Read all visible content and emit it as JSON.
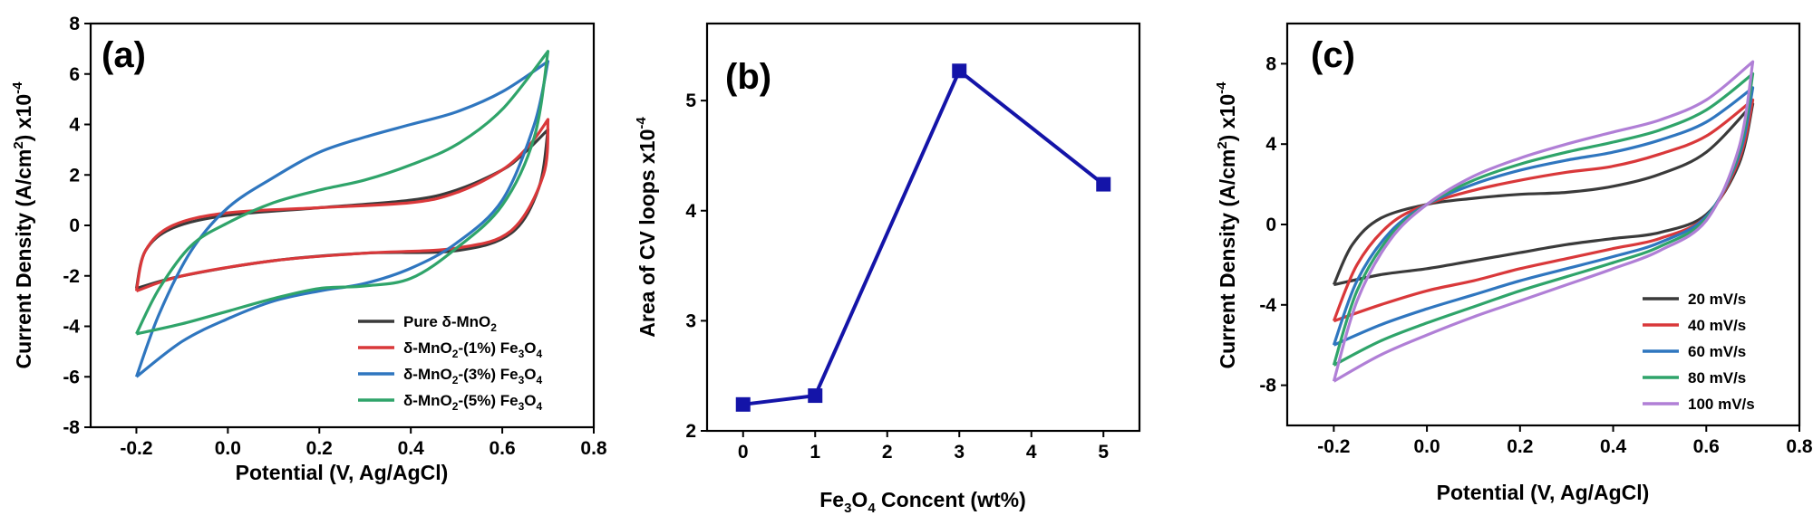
{
  "colors": {
    "black": "#3a3a3a",
    "red": "#d9383a",
    "blue": "#2f76bf",
    "green": "#2fa46a",
    "purple": "#b07fd6",
    "navy": "#1414a8"
  },
  "chart_data": [
    {
      "type": "line",
      "panel_label": "(a)",
      "xlabel": "Potential (V, Ag/AgCl)",
      "ylabel_main": "Current Density (A/cm",
      "ylabel_sup": "2",
      "ylabel_after": ") x10",
      "ylabel_exp": "-4",
      "xlim": [
        -0.3,
        0.8
      ],
      "ylim": [
        -8,
        8
      ],
      "xticks": [
        "-0.2",
        "0.0",
        "0.2",
        "0.4",
        "0.6",
        "0.8"
      ],
      "yticks": [
        "-8",
        "-6",
        "-4",
        "-2",
        "0",
        "2",
        "4",
        "6",
        "8"
      ],
      "legend_position": "bottom-right",
      "series": [
        {
          "name": "Pure δ-MnO2",
          "legend_text": "Pure δ-MnO",
          "legend_sub": "2",
          "legend_after": "",
          "legend_sub2": "",
          "color": "black",
          "upper": [
            [
              -0.2,
              -2.5
            ],
            [
              -0.18,
              -1.0
            ],
            [
              -0.12,
              -0.1
            ],
            [
              0.0,
              0.4
            ],
            [
              0.2,
              0.7
            ],
            [
              0.4,
              1.0
            ],
            [
              0.5,
              1.4
            ],
            [
              0.6,
              2.2
            ],
            [
              0.65,
              2.9
            ],
            [
              0.7,
              3.8
            ]
          ],
          "lower": [
            [
              0.7,
              3.8
            ],
            [
              0.68,
              1.5
            ],
            [
              0.62,
              -0.3
            ],
            [
              0.5,
              -1.0
            ],
            [
              0.3,
              -1.1
            ],
            [
              0.1,
              -1.4
            ],
            [
              -0.1,
              -2.0
            ],
            [
              -0.2,
              -2.5
            ]
          ]
        },
        {
          "name": "δ-MnO2-(1%) Fe3O4",
          "legend_text": "δ-MnO",
          "legend_sub": "2",
          "legend_after": "-(1%) Fe",
          "legend_sub2": "3",
          "legend_tail": "O",
          "legend_sub3": "4",
          "color": "red",
          "upper": [
            [
              -0.2,
              -2.6
            ],
            [
              -0.18,
              -1.0
            ],
            [
              -0.12,
              0.0
            ],
            [
              0.0,
              0.5
            ],
            [
              0.2,
              0.7
            ],
            [
              0.4,
              0.9
            ],
            [
              0.5,
              1.3
            ],
            [
              0.6,
              2.2
            ],
            [
              0.66,
              3.2
            ],
            [
              0.7,
              4.2
            ]
          ],
          "lower": [
            [
              0.7,
              4.2
            ],
            [
              0.69,
              2.0
            ],
            [
              0.62,
              -0.2
            ],
            [
              0.5,
              -0.9
            ],
            [
              0.3,
              -1.1
            ],
            [
              0.1,
              -1.4
            ],
            [
              -0.1,
              -2.0
            ],
            [
              -0.2,
              -2.6
            ]
          ]
        },
        {
          "name": "δ-MnO2-(3%) Fe3O4",
          "legend_text": "δ-MnO",
          "legend_sub": "2",
          "legend_after": "-(3%) Fe",
          "legend_sub2": "3",
          "legend_tail": "O",
          "legend_sub3": "4",
          "color": "blue",
          "upper": [
            [
              -0.2,
              -6.0
            ],
            [
              -0.15,
              -3.5
            ],
            [
              -0.08,
              -1.0
            ],
            [
              0.0,
              0.7
            ],
            [
              0.1,
              1.9
            ],
            [
              0.2,
              2.9
            ],
            [
              0.3,
              3.5
            ],
            [
              0.4,
              4.0
            ],
            [
              0.5,
              4.5
            ],
            [
              0.6,
              5.3
            ],
            [
              0.7,
              6.5
            ]
          ],
          "lower": [
            [
              0.7,
              6.5
            ],
            [
              0.67,
              4.0
            ],
            [
              0.6,
              1.0
            ],
            [
              0.5,
              -0.7
            ],
            [
              0.4,
              -1.7
            ],
            [
              0.3,
              -2.3
            ],
            [
              0.2,
              -2.6
            ],
            [
              0.1,
              -3.0
            ],
            [
              0.0,
              -3.7
            ],
            [
              -0.1,
              -4.6
            ],
            [
              -0.2,
              -6.0
            ]
          ]
        },
        {
          "name": "δ-MnO2-(5%) Fe3O4",
          "legend_text": "δ-MnO",
          "legend_sub": "2",
          "legend_after": "-(5%) Fe",
          "legend_sub2": "3",
          "legend_tail": "O",
          "legend_sub3": "4",
          "color": "green",
          "upper": [
            [
              -0.2,
              -4.3
            ],
            [
              -0.15,
              -2.5
            ],
            [
              -0.08,
              -0.8
            ],
            [
              0.0,
              0.1
            ],
            [
              0.1,
              0.9
            ],
            [
              0.2,
              1.4
            ],
            [
              0.3,
              1.8
            ],
            [
              0.4,
              2.4
            ],
            [
              0.5,
              3.2
            ],
            [
              0.6,
              4.6
            ],
            [
              0.7,
              6.9
            ]
          ],
          "lower": [
            [
              0.7,
              6.9
            ],
            [
              0.67,
              3.5
            ],
            [
              0.6,
              0.8
            ],
            [
              0.5,
              -0.9
            ],
            [
              0.4,
              -2.1
            ],
            [
              0.3,
              -2.4
            ],
            [
              0.2,
              -2.5
            ],
            [
              0.1,
              -2.9
            ],
            [
              0.0,
              -3.4
            ],
            [
              -0.1,
              -3.9
            ],
            [
              -0.2,
              -4.3
            ]
          ]
        }
      ]
    },
    {
      "type": "line",
      "panel_label": "(b)",
      "xlabel_pre": "Fe",
      "xlabel_sub1": "3",
      "xlabel_mid": "O",
      "xlabel_sub2": "4",
      "xlabel_post": " Concent (wt%)",
      "ylabel_main": "Area of CV loops x10",
      "ylabel_exp": "-4",
      "xlim": [
        -0.5,
        5.5
      ],
      "ylim": [
        2,
        5.7
      ],
      "xticks": [
        "0",
        "1",
        "2",
        "3",
        "4",
        "5"
      ],
      "yticks": [
        "2",
        "3",
        "4",
        "5"
      ],
      "series": [
        {
          "x": [
            0,
            1,
            3,
            5
          ],
          "y": [
            2.24,
            2.32,
            5.27,
            4.24
          ],
          "color": "navy"
        }
      ]
    },
    {
      "type": "line",
      "panel_label": "(c)",
      "xlabel": "Potential (V, Ag/AgCl)",
      "ylabel_main": "Current Density (A/cm",
      "ylabel_sup": "2",
      "ylabel_after": ") x10",
      "ylabel_exp": "-4",
      "xlim": [
        -0.3,
        0.8
      ],
      "ylim": [
        -10,
        10
      ],
      "xticks": [
        "-0.2",
        "0.0",
        "0.2",
        "0.4",
        "0.6",
        "0.8"
      ],
      "yticks": [
        "-8",
        "-4",
        "0",
        "4",
        "8"
      ],
      "yticks_values": [
        -8,
        -4,
        0,
        4,
        8
      ],
      "legend_position": "bottom-right",
      "series": [
        {
          "name": "20 mV/s",
          "color": "black",
          "upper": [
            [
              -0.2,
              -3.0
            ],
            [
              -0.16,
              -1.0
            ],
            [
              -0.1,
              0.3
            ],
            [
              0.0,
              1.0
            ],
            [
              0.1,
              1.3
            ],
            [
              0.2,
              1.5
            ],
            [
              0.3,
              1.6
            ],
            [
              0.4,
              1.9
            ],
            [
              0.5,
              2.5
            ],
            [
              0.6,
              3.6
            ],
            [
              0.7,
              6.0
            ]
          ],
          "lower": [
            [
              0.7,
              6.0
            ],
            [
              0.67,
              3.0
            ],
            [
              0.6,
              0.5
            ],
            [
              0.5,
              -0.4
            ],
            [
              0.4,
              -0.7
            ],
            [
              0.3,
              -1.0
            ],
            [
              0.2,
              -1.4
            ],
            [
              0.1,
              -1.8
            ],
            [
              0.0,
              -2.2
            ],
            [
              -0.1,
              -2.5
            ],
            [
              -0.2,
              -3.0
            ]
          ]
        },
        {
          "name": "40 mV/s",
          "color": "red",
          "upper": [
            [
              -0.2,
              -4.8
            ],
            [
              -0.15,
              -2.0
            ],
            [
              -0.08,
              0.0
            ],
            [
              0.0,
              1.0
            ],
            [
              0.1,
              1.7
            ],
            [
              0.2,
              2.2
            ],
            [
              0.3,
              2.6
            ],
            [
              0.4,
              2.9
            ],
            [
              0.5,
              3.5
            ],
            [
              0.6,
              4.4
            ],
            [
              0.7,
              6.2
            ]
          ],
          "lower": [
            [
              0.7,
              6.2
            ],
            [
              0.67,
              3.2
            ],
            [
              0.6,
              0.4
            ],
            [
              0.5,
              -0.7
            ],
            [
              0.4,
              -1.2
            ],
            [
              0.3,
              -1.7
            ],
            [
              0.2,
              -2.2
            ],
            [
              0.1,
              -2.8
            ],
            [
              0.0,
              -3.3
            ],
            [
              -0.1,
              -4.0
            ],
            [
              -0.2,
              -4.8
            ]
          ]
        },
        {
          "name": "60 mV/s",
          "color": "blue",
          "upper": [
            [
              -0.2,
              -6.0
            ],
            [
              -0.15,
              -2.8
            ],
            [
              -0.08,
              -0.4
            ],
            [
              0.0,
              1.0
            ],
            [
              0.1,
              2.0
            ],
            [
              0.2,
              2.7
            ],
            [
              0.3,
              3.2
            ],
            [
              0.4,
              3.6
            ],
            [
              0.5,
              4.2
            ],
            [
              0.6,
              5.1
            ],
            [
              0.7,
              6.8
            ]
          ],
          "lower": [
            [
              0.7,
              6.8
            ],
            [
              0.67,
              3.4
            ],
            [
              0.6,
              0.4
            ],
            [
              0.5,
              -0.9
            ],
            [
              0.4,
              -1.6
            ],
            [
              0.3,
              -2.2
            ],
            [
              0.2,
              -2.8
            ],
            [
              0.1,
              -3.5
            ],
            [
              0.0,
              -4.2
            ],
            [
              -0.1,
              -5.0
            ],
            [
              -0.2,
              -6.0
            ]
          ]
        },
        {
          "name": "80 mV/s",
          "color": "green",
          "upper": [
            [
              -0.2,
              -7.0
            ],
            [
              -0.15,
              -3.3
            ],
            [
              -0.08,
              -0.6
            ],
            [
              0.0,
              1.0
            ],
            [
              0.1,
              2.2
            ],
            [
              0.2,
              3.0
            ],
            [
              0.3,
              3.6
            ],
            [
              0.4,
              4.1
            ],
            [
              0.5,
              4.7
            ],
            [
              0.6,
              5.7
            ],
            [
              0.7,
              7.5
            ]
          ],
          "lower": [
            [
              0.7,
              7.5
            ],
            [
              0.67,
              3.6
            ],
            [
              0.6,
              0.3
            ],
            [
              0.5,
              -1.1
            ],
            [
              0.4,
              -1.9
            ],
            [
              0.3,
              -2.6
            ],
            [
              0.2,
              -3.3
            ],
            [
              0.1,
              -4.1
            ],
            [
              0.0,
              -4.9
            ],
            [
              -0.1,
              -5.8
            ],
            [
              -0.2,
              -7.0
            ]
          ]
        },
        {
          "name": "100 mV/s",
          "color": "purple",
          "upper": [
            [
              -0.2,
              -7.8
            ],
            [
              -0.15,
              -3.8
            ],
            [
              -0.08,
              -0.8
            ],
            [
              0.0,
              1.0
            ],
            [
              0.1,
              2.4
            ],
            [
              0.2,
              3.3
            ],
            [
              0.3,
              4.0
            ],
            [
              0.4,
              4.6
            ],
            [
              0.5,
              5.2
            ],
            [
              0.6,
              6.2
            ],
            [
              0.7,
              8.1
            ]
          ],
          "lower": [
            [
              0.7,
              8.1
            ],
            [
              0.67,
              3.8
            ],
            [
              0.6,
              0.2
            ],
            [
              0.5,
              -1.3
            ],
            [
              0.4,
              -2.2
            ],
            [
              0.3,
              -3.0
            ],
            [
              0.2,
              -3.8
            ],
            [
              0.1,
              -4.6
            ],
            [
              0.0,
              -5.5
            ],
            [
              -0.1,
              -6.5
            ],
            [
              -0.2,
              -7.8
            ]
          ]
        }
      ]
    }
  ]
}
